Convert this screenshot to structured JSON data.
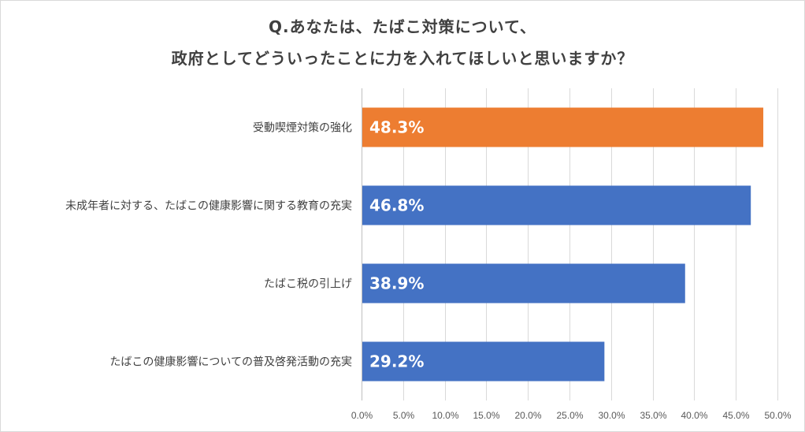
{
  "chart_data": {
    "type": "bar",
    "orientation": "horizontal",
    "title_lines": [
      "Q.あなたは、たばこ対策について、",
      "政府としてどういったことに力を入れてほしいと思いますか？"
    ],
    "categories": [
      "受動喫煙対策の強化",
      "未成年者に対する、たばこの健康影響に関する教育の充実",
      "たばこ税の引上げ",
      "たばこの健康影響についての普及啓発活動の充実"
    ],
    "values": [
      48.3,
      46.8,
      38.9,
      29.2
    ],
    "data_labels": [
      "48.3%",
      "46.8%",
      "38.9%",
      "29.2%"
    ],
    "bar_colors": [
      "#ED7D31",
      "#4472C4",
      "#4472C4",
      "#4472C4"
    ],
    "xlim": [
      0,
      50
    ],
    "xticks": [
      0,
      5,
      10,
      15,
      20,
      25,
      30,
      35,
      40,
      45,
      50
    ],
    "xtick_labels": [
      "0.0%",
      "5.0%",
      "10.0%",
      "15.0%",
      "20.0%",
      "25.0%",
      "30.0%",
      "35.0%",
      "40.0%",
      "45.0%",
      "50.0%"
    ],
    "grid": true,
    "legend": "none"
  }
}
